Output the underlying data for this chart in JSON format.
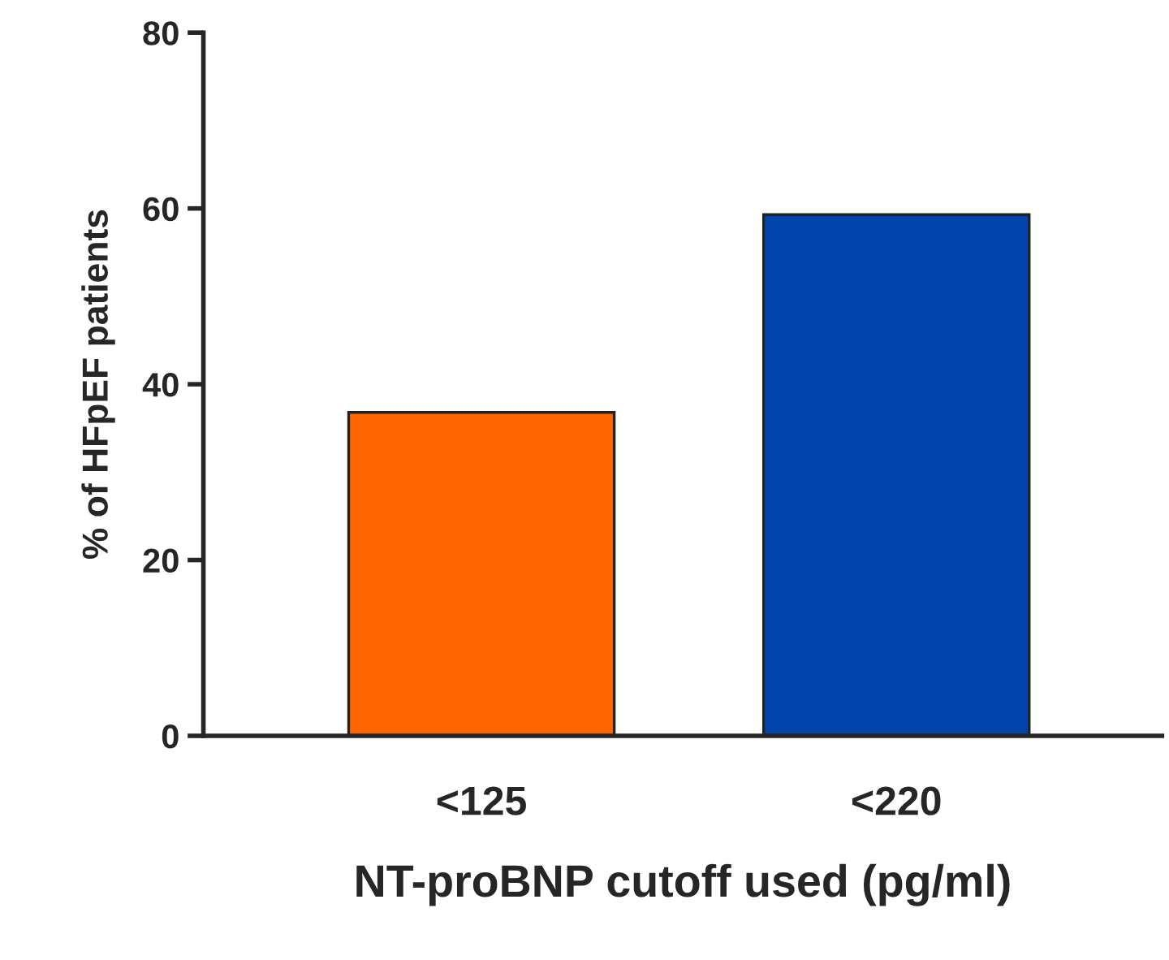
{
  "chart_data": {
    "type": "bar",
    "xlabel": "NT-proBNP cutoff used (pg/ml)",
    "ylabel": "% of HFpEF patients",
    "categories": [
      "<125",
      "<220"
    ],
    "values": [
      36.8,
      59.3
    ],
    "colors": [
      "#ff6600",
      "#0046ad"
    ],
    "ylim": [
      0,
      80
    ],
    "yticks": [
      0,
      20,
      40,
      60,
      80
    ],
    "grid": false
  }
}
